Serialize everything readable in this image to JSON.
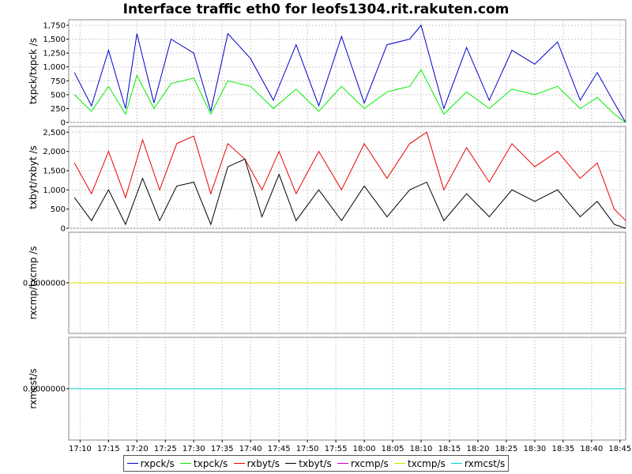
{
  "chart_data": {
    "type": "line",
    "title": "Interface traffic eth0 for leofs1304.rit.rakuten.com",
    "x_ticks": [
      "17:10",
      "17:15",
      "17:20",
      "17:25",
      "17:30",
      "17:35",
      "17:40",
      "17:45",
      "17:50",
      "17:55",
      "18:00",
      "18:05",
      "18:10",
      "18:15",
      "18:20",
      "18:25",
      "18:30",
      "18:35",
      "18:40",
      "18:45"
    ],
    "x_range": [
      "17:08",
      "18:46"
    ],
    "legend": [
      {
        "name": "rxpck/s",
        "color": "#0000cc"
      },
      {
        "name": "txpck/s",
        "color": "#00ee00"
      },
      {
        "name": "rxbyt/s",
        "color": "#ee0000"
      },
      {
        "name": "txbyt/s",
        "color": "#000000"
      },
      {
        "name": "rxcmp/s",
        "color": "#cc00cc"
      },
      {
        "name": "txcmp/s",
        "color": "#dddd00"
      },
      {
        "name": "rxmcst/s",
        "color": "#00cccc"
      }
    ],
    "panels": [
      {
        "ylabel": "txpck/txpck /s",
        "ylim": [
          0,
          1850
        ],
        "yticks": [
          0,
          250,
          500,
          750,
          1000,
          1250,
          1500,
          1750
        ],
        "ytick_labels": [
          "0",
          "250",
          "500",
          "750",
          "1,000",
          "1,250",
          "1,500",
          "1,750"
        ],
        "series": [
          {
            "name": "rxpck/s",
            "color": "#0000cc",
            "x": [
              "17:09",
              "17:12",
              "17:15",
              "17:18",
              "17:20",
              "17:23",
              "17:26",
              "17:30",
              "17:33",
              "17:36",
              "17:40",
              "17:44",
              "17:48",
              "17:52",
              "17:56",
              "18:00",
              "18:04",
              "18:08",
              "18:10",
              "18:14",
              "18:18",
              "18:22",
              "18:26",
              "18:30",
              "18:34",
              "18:38",
              "18:41",
              "18:44",
              "18:46"
            ],
            "y": [
              900,
              300,
              1300,
              250,
              1600,
              350,
              1500,
              1250,
              200,
              1600,
              1150,
              400,
              1400,
              300,
              1550,
              350,
              1400,
              1500,
              1750,
              250,
              1350,
              400,
              1300,
              1050,
              1450,
              400,
              900,
              350,
              0
            ]
          },
          {
            "name": "txpck/s",
            "color": "#00ee00",
            "x": [
              "17:09",
              "17:12",
              "17:15",
              "17:18",
              "17:20",
              "17:23",
              "17:26",
              "17:30",
              "17:33",
              "17:36",
              "17:40",
              "17:44",
              "17:48",
              "17:52",
              "17:56",
              "18:00",
              "18:04",
              "18:08",
              "18:10",
              "18:14",
              "18:18",
              "18:22",
              "18:26",
              "18:30",
              "18:34",
              "18:38",
              "18:41",
              "18:44",
              "18:46"
            ],
            "y": [
              500,
              200,
              650,
              150,
              850,
              250,
              700,
              800,
              150,
              750,
              650,
              250,
              600,
              200,
              650,
              250,
              550,
              650,
              950,
              150,
              550,
              250,
              600,
              500,
              650,
              250,
              450,
              150,
              0
            ]
          }
        ]
      },
      {
        "ylabel": "txbyt/rxbyt /s",
        "ylim": [
          0,
          2650
        ],
        "yticks": [
          0,
          500,
          1000,
          1500,
          2000,
          2500
        ],
        "ytick_labels": [
          "0",
          "500",
          "1,000",
          "1,500",
          "2,000",
          "2,500"
        ],
        "series": [
          {
            "name": "rxbyt/s",
            "color": "#ee0000",
            "x": [
              "17:09",
              "17:12",
              "17:15",
              "17:18",
              "17:21",
              "17:24",
              "17:27",
              "17:30",
              "17:33",
              "17:36",
              "17:39",
              "17:42",
              "17:45",
              "17:48",
              "17:52",
              "17:56",
              "18:00",
              "18:04",
              "18:08",
              "18:11",
              "18:14",
              "18:18",
              "18:22",
              "18:26",
              "18:30",
              "18:34",
              "18:38",
              "18:41",
              "18:44",
              "18:46"
            ],
            "y": [
              1700,
              900,
              2000,
              800,
              2300,
              1000,
              2200,
              2400,
              900,
              2200,
              1800,
              1000,
              2000,
              900,
              2000,
              1000,
              2200,
              1300,
              2200,
              2500,
              1000,
              2100,
              1200,
              2200,
              1600,
              2000,
              1300,
              1700,
              500,
              200
            ]
          },
          {
            "name": "txbyt/s",
            "color": "#000000",
            "x": [
              "17:09",
              "17:12",
              "17:15",
              "17:18",
              "17:21",
              "17:24",
              "17:27",
              "17:30",
              "17:33",
              "17:36",
              "17:39",
              "17:42",
              "17:45",
              "17:48",
              "17:52",
              "17:56",
              "18:00",
              "18:04",
              "18:08",
              "18:11",
              "18:14",
              "18:18",
              "18:22",
              "18:26",
              "18:30",
              "18:34",
              "18:38",
              "18:41",
              "18:44",
              "18:46"
            ],
            "y": [
              800,
              200,
              1000,
              100,
              1300,
              200,
              1100,
              1200,
              100,
              1600,
              1800,
              300,
              1400,
              200,
              1000,
              200,
              1100,
              300,
              1000,
              1200,
              200,
              900,
              300,
              1000,
              700,
              1000,
              300,
              700,
              100,
              0
            ]
          }
        ]
      },
      {
        "ylabel": "rxcmp/txcmp /s",
        "ytick_labels": [
          "0.0000000"
        ],
        "series": [
          {
            "name": "rxcmp/s",
            "color": "#cc00cc",
            "x": [
              "17:08",
              "18:46"
            ],
            "y": [
              0,
              0
            ]
          },
          {
            "name": "txcmp/s",
            "color": "#dddd00",
            "x": [
              "17:08",
              "18:46"
            ],
            "y": [
              0,
              0
            ]
          }
        ]
      },
      {
        "ylabel": "rxmcst/s",
        "ytick_labels": [
          "0.0000000"
        ],
        "series": [
          {
            "name": "rxmcst/s",
            "color": "#00cccc",
            "x": [
              "17:08",
              "18:46"
            ],
            "y": [
              0,
              0
            ]
          }
        ]
      }
    ],
    "grid": true,
    "legend_position": "bottom"
  }
}
